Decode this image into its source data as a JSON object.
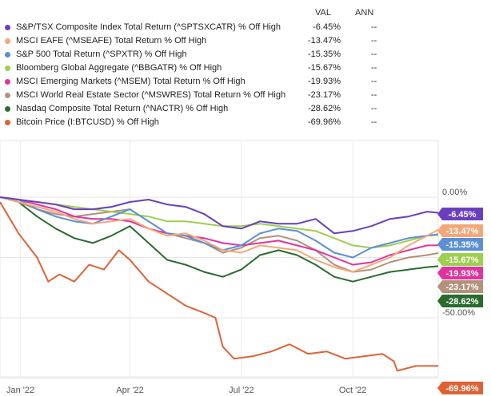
{
  "legend": {
    "col_val": "VAL",
    "col_ann": "ANN",
    "items": [
      {
        "name": "S&P/TSX Composite Index Total Return (^SPTSXCATR) % Off High",
        "val": "-6.45%",
        "ann": "--",
        "color": "#6a3fbf"
      },
      {
        "name": "MSCI EAFE (^MSEAFE) Total Return % Off High",
        "val": "-13.47%",
        "ann": "--",
        "color": "#f4a878"
      },
      {
        "name": "S&P 500 Total Return (^SPXTR) % Off High",
        "val": "-15.35%",
        "ann": "--",
        "color": "#5b8fd6"
      },
      {
        "name": "Bloomberg Global Aggregate (^BBGATR) % Off High",
        "val": "-15.67%",
        "ann": "--",
        "color": "#9dcf4e"
      },
      {
        "name": "MSCI Emerging Markets (^MSEM) Total Return % Off High",
        "val": "-19.93%",
        "ann": "--",
        "color": "#e0339e"
      },
      {
        "name": "MSCI World Real Estate Sector (^MSWRES) Total Return % Off High",
        "val": "-23.17%",
        "ann": "--",
        "color": "#b3917a"
      },
      {
        "name": "Nasdaq Composite Total Return (^NACTR) % Off High",
        "val": "-28.62%",
        "ann": "--",
        "color": "#2a6b2e"
      },
      {
        "name": "Bitcoin Price (I:BTCUSD) % Off High",
        "val": "-69.96%",
        "ann": "--",
        "color": "#e06234"
      }
    ]
  },
  "chart_data": {
    "type": "line",
    "x_ticks": [
      "Jan '22",
      "Apr '22",
      "Jul '22",
      "Oct '22"
    ],
    "y_ticks": [
      "0.00%",
      "-50.00%"
    ],
    "y_tick_values": [
      0,
      -50
    ],
    "ylim": [
      -75,
      8
    ],
    "xlim": [
      0,
      11.8
    ],
    "x_tick_positions": [
      0.55,
      3.5,
      6.5,
      9.5
    ],
    "series": [
      {
        "name": "S&P/TSX Composite Index Total Return (^SPTSXCATR) % Off High",
        "last": -6.45,
        "label": "-6.45%",
        "color": "#6a3fbf",
        "x": [
          0,
          0.5,
          1.0,
          1.5,
          2.0,
          2.5,
          3.0,
          3.5,
          4.0,
          4.5,
          5.0,
          5.5,
          6.0,
          6.5,
          7.0,
          7.5,
          8.0,
          8.5,
          9.0,
          9.5,
          10.0,
          10.5,
          11.0,
          11.5,
          11.8
        ],
        "y": [
          0,
          -1,
          -2,
          -3,
          -5,
          -5,
          -4,
          -2,
          -1,
          -3,
          -4,
          -7,
          -12,
          -13,
          -10,
          -11,
          -11,
          -9,
          -15,
          -14,
          -12,
          -9,
          -8,
          -6,
          -6.45
        ]
      },
      {
        "name": "MSCI EAFE (^MSEAFE) Total Return % Off High",
        "last": -13.47,
        "label": "-13.47%",
        "color": "#f4a878",
        "x": [
          0,
          0.5,
          1.0,
          1.5,
          2.0,
          2.5,
          3.0,
          3.5,
          4.0,
          4.5,
          5.0,
          5.5,
          6.0,
          6.5,
          7.0,
          7.5,
          8.0,
          8.5,
          9.0,
          9.5,
          10.0,
          10.5,
          11.0,
          11.5,
          11.8
        ],
        "y": [
          0,
          -2,
          -4,
          -6,
          -9,
          -11,
          -10,
          -9,
          -13,
          -16,
          -15,
          -18,
          -22,
          -23,
          -20,
          -21,
          -22,
          -26,
          -29,
          -31,
          -28,
          -25,
          -20,
          -16,
          -13.47
        ]
      },
      {
        "name": "S&P 500 Total Return (^SPXTR) % Off High",
        "last": -15.35,
        "label": "-15.35%",
        "color": "#5b8fd6",
        "x": [
          0,
          0.5,
          1.0,
          1.5,
          2.0,
          2.5,
          3.0,
          3.5,
          4.0,
          4.5,
          5.0,
          5.5,
          6.0,
          6.5,
          7.0,
          7.5,
          8.0,
          8.5,
          9.0,
          9.5,
          10.0,
          10.5,
          11.0,
          11.5,
          11.8
        ],
        "y": [
          0,
          -1,
          -5,
          -8,
          -10,
          -11,
          -8,
          -5,
          -10,
          -15,
          -16,
          -19,
          -22,
          -20,
          -15,
          -13,
          -14,
          -18,
          -23,
          -25,
          -21,
          -19,
          -17,
          -16,
          -15.35
        ]
      },
      {
        "name": "Bloomberg Global Aggregate (^BBGATR) % Off High",
        "last": -15.67,
        "label": "-15.67%",
        "color": "#9dcf4e",
        "x": [
          0,
          0.5,
          1.0,
          1.5,
          2.0,
          2.5,
          3.0,
          3.5,
          4.0,
          4.5,
          5.0,
          5.5,
          6.0,
          6.5,
          7.0,
          7.5,
          8.0,
          8.5,
          9.0,
          9.5,
          10.0,
          10.5,
          11.0,
          11.5,
          11.8
        ],
        "y": [
          0,
          -1,
          -2,
          -3,
          -4,
          -5,
          -6,
          -7,
          -8,
          -10,
          -10,
          -11,
          -12,
          -12,
          -11,
          -12,
          -13,
          -14,
          -17,
          -20,
          -21,
          -20,
          -18,
          -16,
          -15.67
        ]
      },
      {
        "name": "MSCI Emerging Markets (^MSEM) Total Return % Off High",
        "last": -19.93,
        "label": "-19.93%",
        "color": "#e0339e",
        "x": [
          0,
          0.5,
          1.0,
          1.5,
          2.0,
          2.5,
          3.0,
          3.5,
          4.0,
          4.5,
          5.0,
          5.5,
          6.0,
          6.5,
          7.0,
          7.5,
          8.0,
          8.5,
          9.0,
          9.5,
          10.0,
          10.5,
          11.0,
          11.5,
          11.8
        ],
        "y": [
          0,
          -1,
          -3,
          -5,
          -8,
          -9,
          -9,
          -10,
          -13,
          -15,
          -16,
          -17,
          -19,
          -20,
          -19,
          -18,
          -20,
          -22,
          -25,
          -28,
          -27,
          -24,
          -22,
          -20,
          -19.93
        ]
      },
      {
        "name": "MSCI World Real Estate Sector (^MSWRES) Total Return % Off High",
        "last": -23.17,
        "label": "-23.17%",
        "color": "#b3917a",
        "x": [
          0,
          0.5,
          1.0,
          1.5,
          2.0,
          2.5,
          3.0,
          3.5,
          4.0,
          4.5,
          5.0,
          5.5,
          6.0,
          6.5,
          7.0,
          7.5,
          8.0,
          8.5,
          9.0,
          9.5,
          10.0,
          10.5,
          11.0,
          11.5,
          11.8
        ],
        "y": [
          0,
          -2,
          -5,
          -7,
          -8,
          -7,
          -6,
          -5,
          -10,
          -15,
          -17,
          -19,
          -23,
          -21,
          -17,
          -16,
          -18,
          -22,
          -28,
          -31,
          -30,
          -27,
          -25,
          -24,
          -23.17
        ]
      },
      {
        "name": "Nasdaq Composite Total Return (^NACTR) % Off High",
        "last": -28.62,
        "label": "-28.62%",
        "color": "#2a6b2e",
        "x": [
          0,
          0.5,
          1.0,
          1.5,
          2.0,
          2.5,
          3.0,
          3.5,
          4.0,
          4.5,
          5.0,
          5.5,
          6.0,
          6.5,
          7.0,
          7.5,
          8.0,
          8.5,
          9.0,
          9.5,
          10.0,
          10.5,
          11.0,
          11.5,
          11.8
        ],
        "y": [
          0,
          -2,
          -8,
          -13,
          -17,
          -19,
          -16,
          -12,
          -19,
          -26,
          -28,
          -31,
          -33,
          -30,
          -24,
          -22,
          -24,
          -28,
          -33,
          -35,
          -33,
          -31,
          -30,
          -29,
          -28.62
        ]
      },
      {
        "name": "Bitcoin Price (I:BTCUSD) % Off High",
        "last": -69.96,
        "label": "-69.96%",
        "color": "#e06234",
        "x": [
          0,
          0.5,
          1.0,
          1.3,
          1.6,
          2.0,
          2.4,
          2.8,
          3.2,
          3.5,
          4.0,
          4.5,
          5.0,
          5.5,
          5.8,
          6.0,
          6.3,
          6.8,
          7.3,
          7.8,
          8.3,
          8.8,
          9.3,
          9.8,
          10.3,
          10.6,
          10.7,
          11.2,
          11.8
        ],
        "y": [
          -2,
          -15,
          -25,
          -35,
          -32,
          -35,
          -28,
          -30,
          -22,
          -26,
          -35,
          -40,
          -45,
          -48,
          -50,
          -62,
          -67,
          -66,
          -64,
          -61,
          -65,
          -64,
          -67,
          -66,
          -65,
          -68,
          -72,
          -70,
          -69.96
        ]
      }
    ]
  }
}
